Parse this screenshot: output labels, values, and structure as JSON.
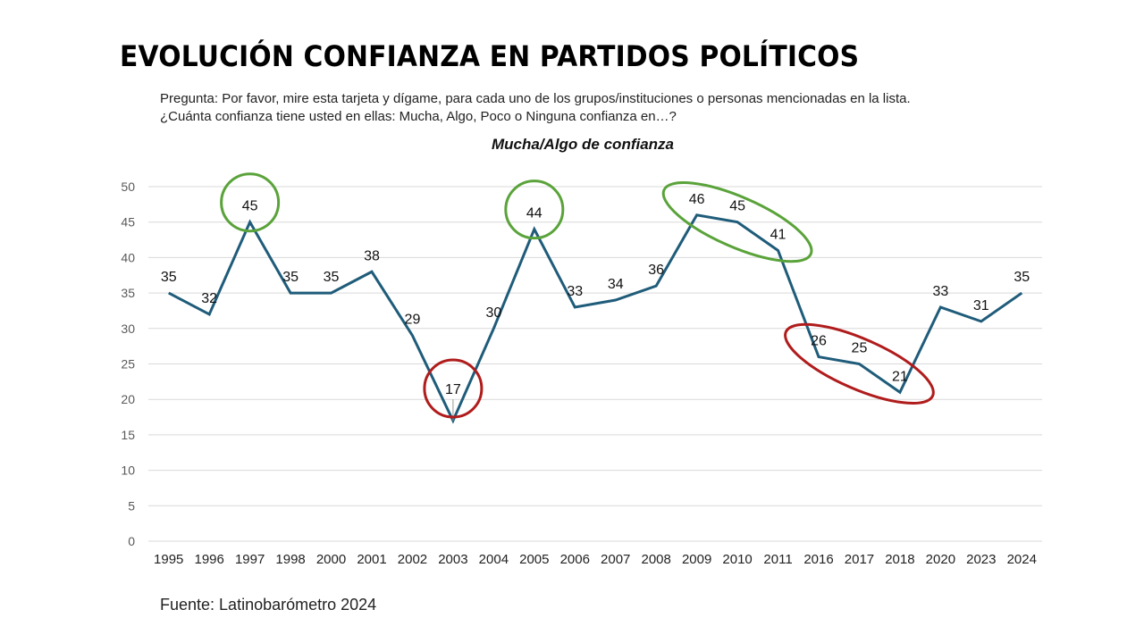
{
  "slide": {
    "title": "EVOLUCIÓN CONFIANZA EN PARTIDOS POLÍTICOS",
    "question_line1": "Pregunta: Por favor, mire esta tarjeta y dígame, para cada uno de los grupos/instituciones o personas mencionadas en la lista.",
    "question_line2": "¿Cuánta confianza tiene usted en ellas: Mucha, Algo, Poco o Ninguna confianza en…?",
    "source": "Fuente: Latinobarómetro 2024"
  },
  "chart_data": {
    "type": "line",
    "title": "Mucha/Algo de confianza",
    "xlabel": "",
    "ylabel": "",
    "categories": [
      "1995",
      "1996",
      "1997",
      "1998",
      "2000",
      "2001",
      "2002",
      "2003",
      "2004",
      "2005",
      "2006",
      "2007",
      "2008",
      "2009",
      "2010",
      "2011",
      "2016",
      "2017",
      "2018",
      "2020",
      "2023",
      "2024"
    ],
    "series": [
      {
        "name": "Mucha/Algo de confianza",
        "color": "#1f5c7a",
        "values": [
          35,
          32,
          45,
          35,
          35,
          38,
          29,
          17,
          30,
          44,
          33,
          34,
          36,
          46,
          45,
          41,
          26,
          25,
          21,
          33,
          31,
          35
        ]
      }
    ],
    "ylim": [
      0,
      50
    ],
    "yticks": [
      0,
      5,
      10,
      15,
      20,
      25,
      30,
      35,
      40,
      45,
      50
    ],
    "grid": true,
    "legend": "none",
    "data_labels": true,
    "annotations": [
      {
        "shape": "circle",
        "color": "#5aa33a",
        "around": [
          "1997"
        ],
        "meaning": "high"
      },
      {
        "shape": "circle",
        "color": "#b01c1c",
        "around": [
          "2003"
        ],
        "meaning": "low"
      },
      {
        "shape": "circle",
        "color": "#5aa33a",
        "around": [
          "2005"
        ],
        "meaning": "high"
      },
      {
        "shape": "ellipse",
        "color": "#5aa33a",
        "around": [
          "2009",
          "2010",
          "2011"
        ],
        "meaning": "high"
      },
      {
        "shape": "ellipse",
        "color": "#b01c1c",
        "around": [
          "2016",
          "2017",
          "2018"
        ],
        "meaning": "low"
      }
    ]
  }
}
